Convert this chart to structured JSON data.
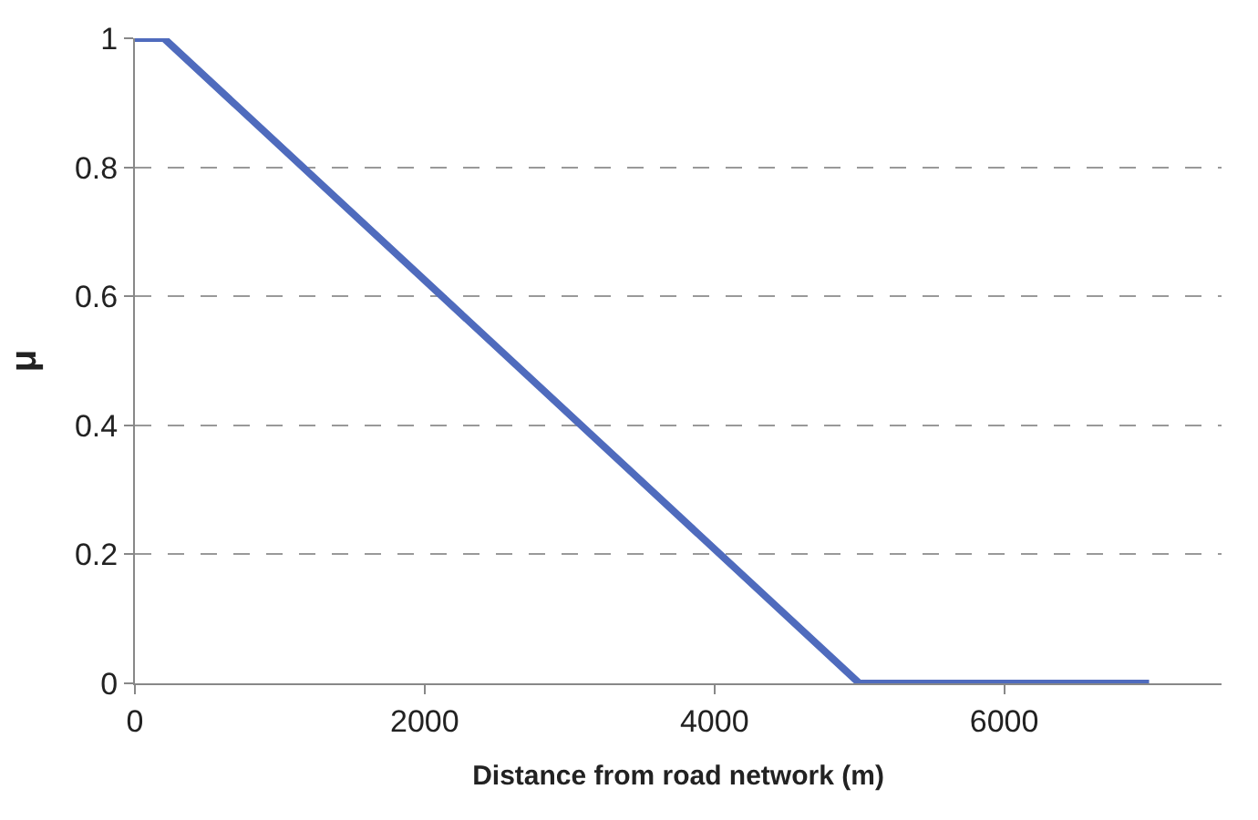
{
  "chart_data": {
    "type": "line",
    "xlabel": "Distance from road network (m)",
    "ylabel": "μ",
    "x": [
      0,
      200,
      5000,
      7000
    ],
    "series": [
      {
        "color": "#4f6bbd",
        "values": [
          1,
          1,
          0,
          0
        ]
      }
    ],
    "xlim": [
      0,
      7500
    ],
    "xticks": [
      0,
      2000,
      4000,
      6000
    ],
    "ylim": [
      0,
      1
    ],
    "yticks": [
      0,
      0.2,
      0.4,
      0.6,
      0.8,
      1
    ],
    "grid": "y",
    "marker": "none",
    "line_style": "solid"
  }
}
